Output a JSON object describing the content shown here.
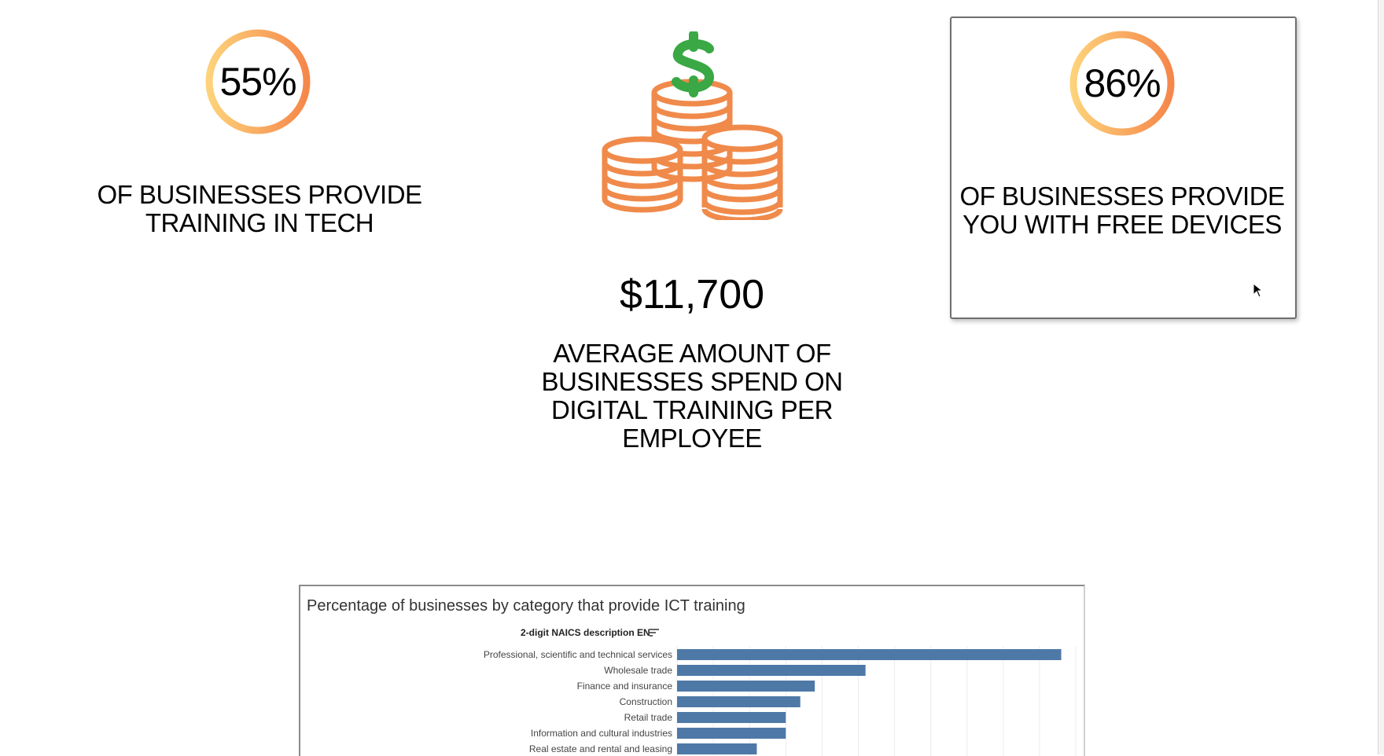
{
  "kpis": {
    "training_in_tech": {
      "value": "55%",
      "fraction": 1.0,
      "caption_line1": "OF BUSINESSES PROVIDE",
      "caption_line2": "TRAINING IN TECH"
    },
    "spend": {
      "amount": "$11,700",
      "caption_line1": "AVERAGE AMOUNT OF",
      "caption_line2": "BUSINESSES SPEND ON",
      "caption_line3": "DIGITAL TRAINING PER",
      "caption_line4": "EMPLOYEE",
      "icon": "money-coins-icon"
    },
    "free_devices": {
      "value": "86%",
      "fraction": 1.0,
      "caption_line1": "OF BUSINESSES PROVIDE",
      "caption_line2": "YOU WITH FREE DEVICES"
    }
  },
  "colors": {
    "ring_start": "#fdd27a",
    "ring_end": "#f5874a",
    "coin_stroke": "#f08a4b",
    "dollar_green": "#3aa845",
    "bar_fill": "#4e79a7"
  },
  "chart": {
    "title": "Percentage of businesses by category that provide ICT training",
    "dimension_header": "2-digit NAICS description EN",
    "sort_icon": "sort-descending-icon"
  },
  "chart_data": {
    "type": "bar",
    "orientation": "horizontal",
    "title": "Percentage of businesses by category that provide ICT training",
    "categories": [
      "Professional, scientific and technical services",
      "Wholesale trade",
      "Finance and insurance",
      "Construction",
      "Retail trade",
      "Information and cultural industries",
      "Real estate and rental and leasing"
    ],
    "values": [
      53,
      26,
      19,
      17,
      15,
      15,
      11
    ],
    "xlim": [
      0,
      55
    ],
    "grid": true
  }
}
